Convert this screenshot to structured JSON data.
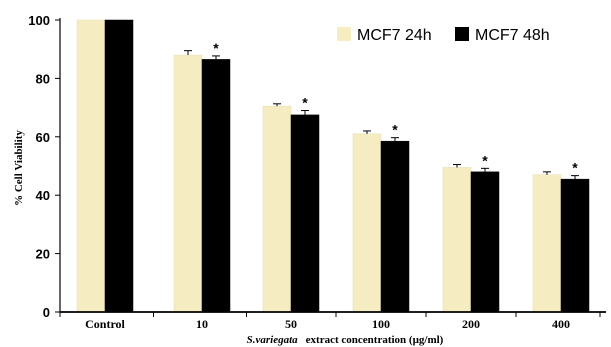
{
  "chart_data": {
    "type": "bar",
    "categories": [
      "Control",
      "10",
      "50",
      "100",
      "200",
      "400"
    ],
    "series": [
      {
        "name": "MCF7 24h",
        "color": "#f5ecc2",
        "values": [
          100,
          88,
          70.5,
          61,
          49.5,
          47
        ],
        "errors": [
          0,
          1.5,
          0.8,
          1.0,
          1.0,
          1.0
        ]
      },
      {
        "name": "MCF7 48h",
        "color": "#000000",
        "values": [
          100,
          86.5,
          67.5,
          58.5,
          48,
          45.5
        ],
        "errors": [
          0,
          1.2,
          1.5,
          1.2,
          1.2,
          1.2
        ]
      }
    ],
    "significance": [
      {
        "category": "10",
        "label": "*"
      },
      {
        "category": "50",
        "label": "*"
      },
      {
        "category": "100",
        "label": "*"
      },
      {
        "category": "200",
        "label": "*"
      },
      {
        "category": "400",
        "label": "*"
      }
    ],
    "ylabel": "% Cell Viability",
    "xlabel_italic": "S.variegata",
    "xlabel_rest": "extract concentration (µg/ml)",
    "ylim": [
      0,
      100
    ],
    "yticks": [
      0,
      20,
      40,
      60,
      80,
      100
    ],
    "legend": "top-right",
    "grid": false
  }
}
